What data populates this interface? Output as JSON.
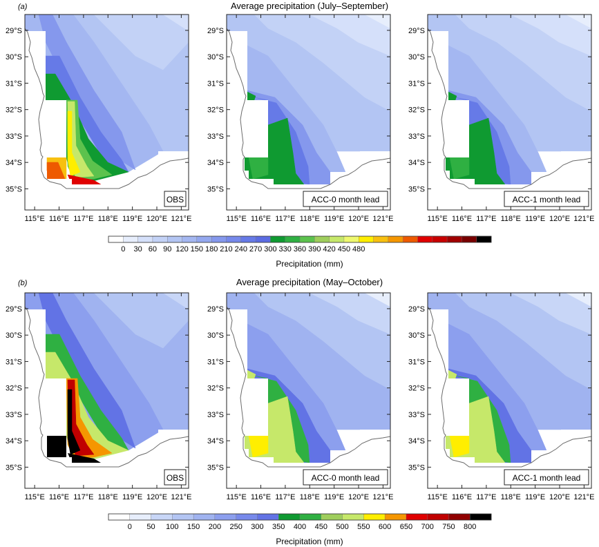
{
  "colors": {
    "background": "#ffffff",
    "coast": "#6a6a6a",
    "frame": "#222222",
    "land_outside": "#ffffff"
  },
  "colorbar_a": {
    "label": "Precipitation (mm)",
    "ticks": [
      "0",
      "30",
      "60",
      "90",
      "120",
      "150",
      "180",
      "210",
      "240",
      "270",
      "300",
      "330",
      "360",
      "390",
      "420",
      "450",
      "480"
    ],
    "colors": [
      "#ffffff",
      "#e7eefc",
      "#d5e0fa",
      "#c3d2f6",
      "#b3c5f3",
      "#a4b7f1",
      "#94a8ef",
      "#8598ed",
      "#7689eb",
      "#667ae7",
      "#5b6ce2",
      "#0f9a31",
      "#2fb042",
      "#5cc24d",
      "#9fce5c",
      "#c6e86a",
      "#eef86e",
      "#ffee00",
      "#f8c010",
      "#f59600",
      "#ee5a00",
      "#e00000",
      "#c80000",
      "#a00000",
      "#780000",
      "#000000"
    ]
  },
  "colorbar_b": {
    "label": "Precipitation (mm)",
    "ticks": [
      "0",
      "50",
      "100",
      "150",
      "200",
      "250",
      "300",
      "350",
      "400",
      "450",
      "500",
      "550",
      "600",
      "650",
      "700",
      "750",
      "800"
    ],
    "colors": [
      "#ffffff",
      "#e7eefc",
      "#c8d6f7",
      "#b3c5f3",
      "#a0b3f0",
      "#8c9fee",
      "#7789eb",
      "#6273e5",
      "#0f9a31",
      "#2fb042",
      "#9fce5c",
      "#c6e86a",
      "#ffee00",
      "#f59600",
      "#e00000",
      "#c00000",
      "#900000",
      "#000000"
    ]
  },
  "panels": [
    {
      "label": "(a)",
      "title": "Average precipitation (July–September)",
      "maps": [
        {
          "label": "OBS",
          "variant": "obs"
        },
        {
          "label": "ACC-0 month lead",
          "variant": "acc0"
        },
        {
          "label": "ACC-1 month lead",
          "variant": "acc1"
        }
      ]
    },
    {
      "label": "(b)",
      "title": "Average precipitation (May–October)",
      "maps": [
        {
          "label": "OBS",
          "variant": "obs"
        },
        {
          "label": "ACC-0 month lead",
          "variant": "acc0"
        },
        {
          "label": "ACC-1 month lead",
          "variant": "acc1"
        }
      ]
    }
  ],
  "chart_data": [
    {
      "type": "heatmap",
      "title": "Average precipitation (July–September)",
      "panels": [
        "OBS",
        "ACC-0 month lead",
        "ACC-1 month lead"
      ],
      "x_ticks": [
        "115°E",
        "116°E",
        "117°E",
        "118°E",
        "119°E",
        "120°E",
        "121°E"
      ],
      "y_ticks": [
        "29°S",
        "30°S",
        "31°S",
        "32°S",
        "33°S",
        "34°S",
        "35°S"
      ],
      "xlim": [
        114.6,
        121.3
      ],
      "ylim": [
        -35.8,
        -28.4
      ],
      "colorbar_range_mm": [
        0,
        480
      ],
      "colorbar_step_mm": 30,
      "description": "contoured precipitation (mm) over south-west Western Australia"
    },
    {
      "type": "heatmap",
      "title": "Average precipitation (May–October)",
      "panels": [
        "OBS",
        "ACC-0 month lead",
        "ACC-1 month lead"
      ],
      "x_ticks": [
        "115°E",
        "116°E",
        "117°E",
        "118°E",
        "119°E",
        "120°E",
        "121°E"
      ],
      "y_ticks": [
        "29°S",
        "30°S",
        "31°S",
        "32°S",
        "33°S",
        "34°S",
        "35°S"
      ],
      "xlim": [
        114.6,
        121.3
      ],
      "ylim": [
        -35.8,
        -28.4
      ],
      "colorbar_range_mm": [
        0,
        800
      ],
      "colorbar_step_mm": 50,
      "description": "contoured precipitation (mm) over south-west Western Australia"
    }
  ]
}
